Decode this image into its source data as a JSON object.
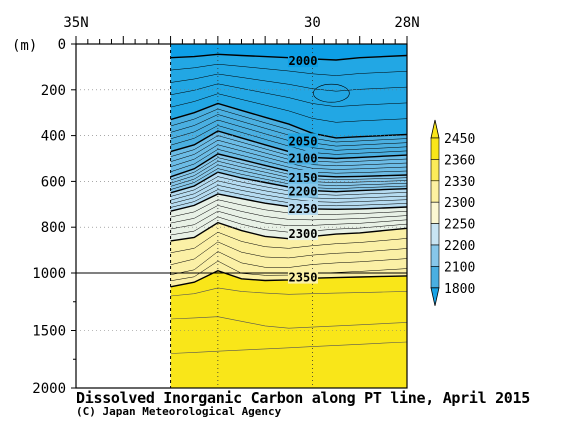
{
  "chart_data": {
    "type": "heatmap",
    "title": "Dissolved Inorganic Carbon along PT line, April 2015",
    "credit": "(C) Japan Meteorological Agency",
    "ylabel": "(m)",
    "x_ticks": [
      {
        "label": "35N",
        "lat": 35
      },
      {
        "label": "30",
        "lat": 30
      },
      {
        "label": "28N",
        "lat": 28
      }
    ],
    "x_range": [
      35,
      28
    ],
    "data_lat_range": [
      33.0,
      28.0
    ],
    "y_ticks": [
      0,
      200,
      400,
      600,
      800,
      1000,
      1500,
      2000
    ],
    "y_upper_range": [
      0,
      1000
    ],
    "y_lower_range": [
      1000,
      2000
    ],
    "contour_levels": [
      2000,
      2050,
      2100,
      2150,
      2200,
      2250,
      2300,
      2350
    ],
    "contour_label_depths": [
      {
        "level": 2000,
        "depth": 75
      },
      {
        "level": 2050,
        "depth": 425
      },
      {
        "level": 2100,
        "depth": 500
      },
      {
        "level": 2150,
        "depth": 585
      },
      {
        "level": 2200,
        "depth": 645
      },
      {
        "level": 2250,
        "depth": 720
      },
      {
        "level": 2300,
        "depth": 830
      },
      {
        "level": 2350,
        "depth": 1040
      }
    ],
    "colorbar": {
      "labels": [
        "2450",
        "2360",
        "2330",
        "2300",
        "2250",
        "2200",
        "2100",
        "1800"
      ],
      "colors": [
        "#f9e619",
        "#fbeb59",
        "#fdf1a0",
        "#fbf7d2",
        "#c8e4f3",
        "#87c7ea",
        "#4aafe1",
        "#18a3e6"
      ]
    },
    "colors": {
      "deep_blue": "#0d9fe6",
      "surface_yellow": "#f9e619"
    }
  }
}
